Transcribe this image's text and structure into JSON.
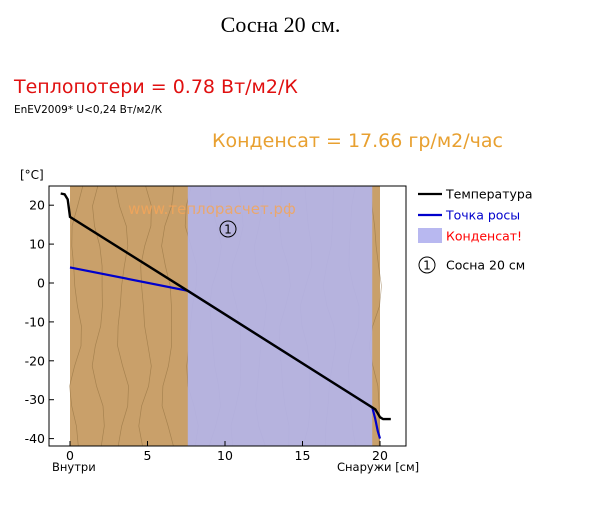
{
  "header": {
    "title": "Сосна 20 см.",
    "heat_loss": "Теплопотери = 0.78 Вт/м2/К",
    "norm": "EnEV2009* U<0,24 Вт/м2/К",
    "condensate": "Конденсат = 17.66 гр/м2/час"
  },
  "chart_data": {
    "type": "line",
    "ylabel": "[°C]",
    "xlabel_left": "Внутри",
    "xlabel_right": "Снаружи [см]",
    "watermark": "www.теплорасчет.рф",
    "xlim": [
      -1,
      21
    ],
    "ylim": [
      -40,
      25
    ],
    "x_ticks": [
      0,
      5,
      10,
      15,
      20
    ],
    "y_ticks": [
      20,
      10,
      0,
      -10,
      -20,
      -30,
      -40
    ],
    "layer": {
      "name": "Сосна 20 см",
      "number": "1",
      "x_start": 0,
      "x_end": 20
    },
    "condensation_zone": {
      "x_start": 7.6,
      "x_end": 19.5
    },
    "series": [
      {
        "name": "Температура",
        "color": "#000000",
        "x": [
          -0.6,
          -0.35,
          -0.15,
          0,
          7.6,
          19.7,
          19.85,
          20,
          20.2,
          20.4,
          20.7
        ],
        "y": [
          23,
          22.8,
          21.5,
          17,
          -2,
          -32.5,
          -33.5,
          -34.5,
          -35,
          -35,
          -35
        ]
      },
      {
        "name": "Точка росы",
        "color": "#0000cc",
        "x": [
          0,
          7.6,
          19.5,
          19.7,
          19.85,
          20
        ],
        "y": [
          4,
          -2,
          -32,
          -35,
          -38,
          -40
        ]
      }
    ],
    "legend": {
      "placement": "right",
      "items": [
        {
          "label": "Температура",
          "color": "#000000",
          "kind": "line"
        },
        {
          "label": "Точка росы",
          "color": "#0000cc",
          "kind": "line"
        },
        {
          "label": "Конденсат!",
          "color": "#ff0000",
          "kind": "patch",
          "patch_color": "#b8b8f0"
        }
      ],
      "layer_label": "Сосна 20 см",
      "layer_number": "1"
    },
    "colors": {
      "wood": "#c9a06a",
      "condensate_zone": "#b4b4e8",
      "dew_line_in_zone": "#7a8ae8"
    }
  }
}
